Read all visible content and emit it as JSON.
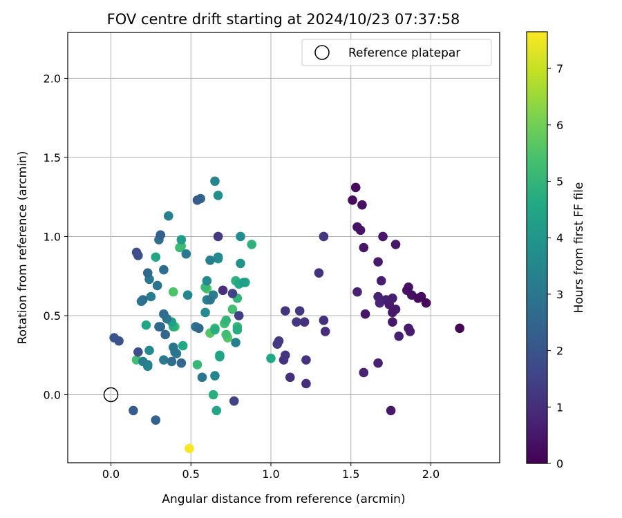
{
  "chart_data": {
    "type": "scatter",
    "title": "FOV centre drift starting at 2024/10/23 07:37:58",
    "xlabel": "Angular distance from reference (arcmin)",
    "ylabel": "Rotation from reference (arcmin)",
    "xlim": [
      -0.27,
      2.43
    ],
    "ylim": [
      -0.43,
      2.29
    ],
    "xticks": [
      0.0,
      0.5,
      1.0,
      1.5,
      2.0
    ],
    "xtick_labels": [
      "0.0",
      "0.5",
      "1.0",
      "1.5",
      "2.0"
    ],
    "yticks": [
      0.0,
      0.5,
      1.0,
      1.5,
      2.0
    ],
    "ytick_labels": [
      "0.0",
      "0.5",
      "1.0",
      "1.5",
      "2.0"
    ],
    "grid": true,
    "legend": {
      "placement": "top-right",
      "label": "Reference platepar"
    },
    "reference_point": {
      "x": 0.0,
      "y": 0.0
    },
    "colorbar": {
      "label": "Hours from first FF file",
      "colormap": "viridis",
      "range": [
        0,
        7.65
      ],
      "ticks": [
        0,
        1,
        2,
        3,
        4,
        5,
        6,
        7
      ],
      "tick_labels": [
        "0",
        "1",
        "2",
        "3",
        "4",
        "5",
        "6",
        "7"
      ]
    },
    "points": [
      {
        "x": 1.53,
        "y": 1.31,
        "h": 0.2
      },
      {
        "x": 1.51,
        "y": 1.23,
        "h": 0.25
      },
      {
        "x": 1.57,
        "y": 1.2,
        "h": 0.3
      },
      {
        "x": 1.54,
        "y": 1.06,
        "h": 0.35
      },
      {
        "x": 1.56,
        "y": 1.04,
        "h": 0.4
      },
      {
        "x": 1.7,
        "y": 1.0,
        "h": 0.5
      },
      {
        "x": 1.58,
        "y": 0.93,
        "h": 0.45
      },
      {
        "x": 1.78,
        "y": 0.95,
        "h": 0.5
      },
      {
        "x": 1.67,
        "y": 0.84,
        "h": 0.55
      },
      {
        "x": 1.69,
        "y": 0.72,
        "h": 0.6
      },
      {
        "x": 1.54,
        "y": 0.65,
        "h": 0.7
      },
      {
        "x": 1.67,
        "y": 0.62,
        "h": 0.75
      },
      {
        "x": 1.72,
        "y": 0.6,
        "h": 0.7
      },
      {
        "x": 1.76,
        "y": 0.61,
        "h": 0.65
      },
      {
        "x": 1.68,
        "y": 0.58,
        "h": 0.8
      },
      {
        "x": 1.74,
        "y": 0.57,
        "h": 0.6
      },
      {
        "x": 1.78,
        "y": 0.54,
        "h": 0.55
      },
      {
        "x": 1.76,
        "y": 0.52,
        "h": 0.5
      },
      {
        "x": 1.59,
        "y": 0.51,
        "h": 0.45
      },
      {
        "x": 1.85,
        "y": 0.66,
        "h": 0.4
      },
      {
        "x": 1.86,
        "y": 0.68,
        "h": 0.35
      },
      {
        "x": 1.88,
        "y": 0.63,
        "h": 0.3
      },
      {
        "x": 1.92,
        "y": 0.61,
        "h": 0.25
      },
      {
        "x": 1.94,
        "y": 0.62,
        "h": 0.2
      },
      {
        "x": 1.97,
        "y": 0.58,
        "h": 0.15
      },
      {
        "x": 1.76,
        "y": 0.46,
        "h": 0.5
      },
      {
        "x": 1.86,
        "y": 0.42,
        "h": 0.55
      },
      {
        "x": 1.87,
        "y": 0.4,
        "h": 0.6
      },
      {
        "x": 1.8,
        "y": 0.37,
        "h": 0.65
      },
      {
        "x": 2.18,
        "y": 0.42,
        "h": 0.1
      },
      {
        "x": 1.67,
        "y": 0.2,
        "h": 0.7
      },
      {
        "x": 1.58,
        "y": 0.14,
        "h": 0.75
      },
      {
        "x": 1.75,
        "y": -0.1,
        "h": 0.5
      },
      {
        "x": 1.33,
        "y": 1.0,
        "h": 1.2
      },
      {
        "x": 1.3,
        "y": 0.77,
        "h": 1.1
      },
      {
        "x": 1.09,
        "y": 0.53,
        "h": 1.15
      },
      {
        "x": 1.18,
        "y": 0.53,
        "h": 1.2
      },
      {
        "x": 1.16,
        "y": 0.46,
        "h": 1.25
      },
      {
        "x": 1.21,
        "y": 0.46,
        "h": 1.1
      },
      {
        "x": 1.33,
        "y": 0.47,
        "h": 1.05
      },
      {
        "x": 1.34,
        "y": 0.4,
        "h": 1.0
      },
      {
        "x": 1.05,
        "y": 0.34,
        "h": 1.3
      },
      {
        "x": 1.04,
        "y": 0.32,
        "h": 1.35
      },
      {
        "x": 1.09,
        "y": 0.25,
        "h": 1.2
      },
      {
        "x": 1.08,
        "y": 0.22,
        "h": 1.15
      },
      {
        "x": 1.22,
        "y": 0.22,
        "h": 1.1
      },
      {
        "x": 1.12,
        "y": 0.11,
        "h": 1.05
      },
      {
        "x": 1.22,
        "y": 0.07,
        "h": 1.0
      },
      {
        "x": 0.67,
        "y": 1.0,
        "h": 1.3
      },
      {
        "x": 0.7,
        "y": 0.66,
        "h": 1.0
      },
      {
        "x": 0.8,
        "y": 0.5,
        "h": 1.4
      },
      {
        "x": 0.77,
        "y": -0.04,
        "h": 1.5
      },
      {
        "x": 0.76,
        "y": 0.64,
        "h": 1.5
      },
      {
        "x": 0.16,
        "y": 0.9,
        "h": 1.8
      },
      {
        "x": 0.17,
        "y": 0.88,
        "h": 1.9
      },
      {
        "x": 0.02,
        "y": 0.36,
        "h": 2.0
      },
      {
        "x": 0.05,
        "y": 0.34,
        "h": 1.9
      },
      {
        "x": 0.17,
        "y": 0.27,
        "h": 1.8
      },
      {
        "x": 0.14,
        "y": -0.1,
        "h": 2.2
      },
      {
        "x": 0.28,
        "y": -0.16,
        "h": 2.4
      },
      {
        "x": 0.54,
        "y": 1.23,
        "h": 2.2
      },
      {
        "x": 0.56,
        "y": 1.24,
        "h": 2.5
      },
      {
        "x": 0.31,
        "y": 1.01,
        "h": 2.3
      },
      {
        "x": 0.3,
        "y": 0.98,
        "h": 2.8
      },
      {
        "x": 0.33,
        "y": 0.79,
        "h": 2.7
      },
      {
        "x": 0.23,
        "y": 0.77,
        "h": 2.6
      },
      {
        "x": 0.24,
        "y": 0.73,
        "h": 3.0
      },
      {
        "x": 0.29,
        "y": 0.69,
        "h": 2.9
      },
      {
        "x": 0.2,
        "y": 0.6,
        "h": 2.8
      },
      {
        "x": 0.19,
        "y": 0.59,
        "h": 3.1
      },
      {
        "x": 0.25,
        "y": 0.62,
        "h": 3.2
      },
      {
        "x": 0.33,
        "y": 0.51,
        "h": 2.7
      },
      {
        "x": 0.35,
        "y": 0.48,
        "h": 3.0
      },
      {
        "x": 0.31,
        "y": 0.43,
        "h": 2.6
      },
      {
        "x": 0.3,
        "y": 0.43,
        "h": 2.8
      },
      {
        "x": 0.34,
        "y": 0.38,
        "h": 2.5
      },
      {
        "x": 0.39,
        "y": 0.3,
        "h": 3.0
      },
      {
        "x": 0.4,
        "y": 0.27,
        "h": 2.9
      },
      {
        "x": 0.41,
        "y": 0.26,
        "h": 3.2
      },
      {
        "x": 0.33,
        "y": 0.22,
        "h": 3.1
      },
      {
        "x": 0.38,
        "y": 0.21,
        "h": 2.7
      },
      {
        "x": 0.44,
        "y": 0.2,
        "h": 2.5
      },
      {
        "x": 0.2,
        "y": 0.21,
        "h": 3.2
      },
      {
        "x": 0.23,
        "y": 0.19,
        "h": 3.4
      },
      {
        "x": 0.23,
        "y": 0.18,
        "h": 3.5
      },
      {
        "x": 0.24,
        "y": 0.28,
        "h": 3.6
      },
      {
        "x": 0.36,
        "y": 1.13,
        "h": 3.3
      },
      {
        "x": 0.65,
        "y": 1.35,
        "h": 3.5
      },
      {
        "x": 0.67,
        "y": 1.26,
        "h": 3.8
      },
      {
        "x": 0.44,
        "y": 0.98,
        "h": 4.2
      },
      {
        "x": 0.47,
        "y": 0.89,
        "h": 3.1
      },
      {
        "x": 0.62,
        "y": 0.85,
        "h": 3.3
      },
      {
        "x": 0.67,
        "y": 0.87,
        "h": 3.6
      },
      {
        "x": 0.67,
        "y": 0.86,
        "h": 4.0
      },
      {
        "x": 0.6,
        "y": 0.72,
        "h": 3.6
      },
      {
        "x": 0.64,
        "y": 0.63,
        "h": 3.2
      },
      {
        "x": 0.62,
        "y": 0.6,
        "h": 3.0
      },
      {
        "x": 0.6,
        "y": 0.6,
        "h": 3.4
      },
      {
        "x": 0.48,
        "y": 0.63,
        "h": 3.5
      },
      {
        "x": 0.59,
        "y": 0.52,
        "h": 3.6
      },
      {
        "x": 0.53,
        "y": 0.43,
        "h": 2.9
      },
      {
        "x": 0.55,
        "y": 0.42,
        "h": 2.6
      },
      {
        "x": 0.57,
        "y": 0.11,
        "h": 3.0
      },
      {
        "x": 0.65,
        "y": 0.12,
        "h": 3.5
      },
      {
        "x": 0.81,
        "y": 1.0,
        "h": 3.7
      },
      {
        "x": 0.81,
        "y": 0.83,
        "h": 3.9
      },
      {
        "x": 0.78,
        "y": 0.33,
        "h": 3.3
      },
      {
        "x": 0.43,
        "y": 0.93,
        "h": 5.2
      },
      {
        "x": 0.44,
        "y": 0.94,
        "h": 5.4
      },
      {
        "x": 0.28,
        "y": 0.87,
        "h": 4.5
      },
      {
        "x": 0.39,
        "y": 0.65,
        "h": 5.5
      },
      {
        "x": 0.38,
        "y": 0.46,
        "h": 4.3
      },
      {
        "x": 0.39,
        "y": 0.43,
        "h": 4.8
      },
      {
        "x": 0.4,
        "y": 0.43,
        "h": 5.5
      },
      {
        "x": 0.22,
        "y": 0.44,
        "h": 4.5
      },
      {
        "x": 0.45,
        "y": 0.31,
        "h": 4.6
      },
      {
        "x": 0.16,
        "y": 0.22,
        "h": 5.3
      },
      {
        "x": 0.6,
        "y": 0.67,
        "h": 5.6
      },
      {
        "x": 0.59,
        "y": 0.68,
        "h": 5.1
      },
      {
        "x": 0.78,
        "y": 0.72,
        "h": 4.9
      },
      {
        "x": 0.8,
        "y": 0.7,
        "h": 4.6
      },
      {
        "x": 0.83,
        "y": 0.71,
        "h": 4.3
      },
      {
        "x": 0.84,
        "y": 0.71,
        "h": 4.8
      },
      {
        "x": 0.79,
        "y": 0.61,
        "h": 5.0
      },
      {
        "x": 0.76,
        "y": 0.54,
        "h": 5.3
      },
      {
        "x": 0.88,
        "y": 0.95,
        "h": 4.9
      },
      {
        "x": 0.72,
        "y": 0.47,
        "h": 5.0
      },
      {
        "x": 0.71,
        "y": 0.45,
        "h": 5.3
      },
      {
        "x": 0.65,
        "y": 0.42,
        "h": 5.2
      },
      {
        "x": 0.62,
        "y": 0.39,
        "h": 5.6
      },
      {
        "x": 0.65,
        "y": 0.41,
        "h": 4.8
      },
      {
        "x": 0.79,
        "y": 0.43,
        "h": 5.0
      },
      {
        "x": 0.79,
        "y": 0.41,
        "h": 4.7
      },
      {
        "x": 0.72,
        "y": 0.38,
        "h": 5.3
      },
      {
        "x": 0.73,
        "y": 0.36,
        "h": 5.6
      },
      {
        "x": 0.68,
        "y": 0.25,
        "h": 4.6
      },
      {
        "x": 0.68,
        "y": 0.24,
        "h": 4.4
      },
      {
        "x": 0.54,
        "y": 0.19,
        "h": 5.1
      },
      {
        "x": 0.64,
        "y": 0.0,
        "h": 4.8
      },
      {
        "x": 0.66,
        "y": -0.1,
        "h": 4.5
      },
      {
        "x": 1.0,
        "y": 0.23,
        "h": 4.6
      },
      {
        "x": 0.49,
        "y": -0.34,
        "h": 7.6
      }
    ]
  }
}
